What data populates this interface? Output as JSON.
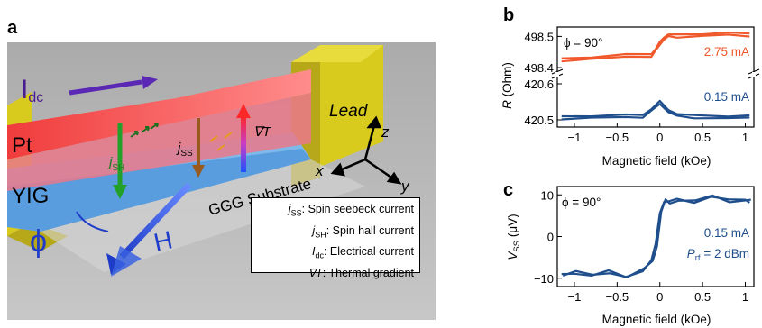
{
  "figure": {
    "panel_a": {
      "letter": "a",
      "labels": {
        "idc_main": "I",
        "idc_sub": "dc",
        "pt": "Pt",
        "yig": "YIG",
        "lead": "Lead",
        "substrate": "GGG Substrate",
        "jsh_main": "j",
        "jsh_sub": "SH",
        "jss_main": "j",
        "jss_sub": "SS",
        "gradT": "∇T",
        "phi": "ϕ",
        "H": "H",
        "axis_x": "x",
        "axis_y": "y",
        "axis_z": "z"
      },
      "legend": [
        {
          "sym": "j",
          "sub": "SS",
          "text": ": Spin seebeck current"
        },
        {
          "sym": "j",
          "sub": "SH",
          "text": ": Spin hall current"
        },
        {
          "sym": "I",
          "sub": "dc",
          "text": ": Electrical current"
        },
        {
          "sym": "∇T",
          "sub": "",
          "text": ": Thermal gradient"
        }
      ]
    },
    "panel_b": {
      "letter": "b",
      "annotation_phi": "ϕ = 90°",
      "ylabel_main": "R",
      "ylabel_unit": "(Ohm)",
      "xlabel": "Magnetic field (kOe)",
      "label_high": "2.75 mA",
      "label_low": "0.15 mA",
      "yticks_top": [
        "498.5",
        "498.4"
      ],
      "yticks_bottom": [
        "420.6",
        "420.5"
      ],
      "xticks": [
        "−1",
        "−0.5",
        "0",
        "0.5",
        "1"
      ]
    },
    "panel_c": {
      "letter": "c",
      "annotation_phi": "ϕ = 90°",
      "ylabel_main": "V",
      "ylabel_sub": "SS",
      "ylabel_unit": "(μV)",
      "xlabel": "Magnetic field (kOe)",
      "label_current": "0.15 mA",
      "label_prf_main": "P",
      "label_prf_sub": "rf",
      "label_prf_value": "= 2 dBm",
      "yticks": [
        "10",
        "0",
        "−10"
      ],
      "xticks": [
        "−1",
        "−0.5",
        "0",
        "0.5",
        "1"
      ]
    }
  },
  "chart_data": [
    {
      "type": "line",
      "panel": "b (upper)",
      "xlabel": "Magnetic field (kOe)",
      "ylabel": "R (Ohm)",
      "xlim": [
        -1.2,
        1.1
      ],
      "ylim": [
        498.38,
        498.53
      ],
      "series": [
        {
          "name": "2.75 mA",
          "color": "#f0592b",
          "x": [
            -1.15,
            -0.8,
            -0.4,
            -0.1,
            -0.05,
            0.0,
            0.05,
            0.1,
            0.2,
            0.5,
            0.8,
            1.05
          ],
          "values": [
            498.43,
            498.435,
            498.44,
            498.445,
            498.46,
            498.48,
            498.5,
            498.505,
            498.505,
            498.51,
            498.51,
            498.51
          ]
        }
      ]
    },
    {
      "type": "line",
      "panel": "b (lower)",
      "xlabel": "Magnetic field (kOe)",
      "ylabel": "R (Ohm)",
      "xlim": [
        -1.2,
        1.1
      ],
      "ylim": [
        420.48,
        420.62
      ],
      "series": [
        {
          "name": "0.15 mA",
          "color": "#1f4e8c",
          "x": [
            -1.15,
            -0.8,
            -0.4,
            -0.2,
            -0.1,
            0.0,
            0.1,
            0.2,
            0.4,
            0.8,
            1.05
          ],
          "values": [
            420.51,
            420.512,
            420.512,
            420.515,
            420.53,
            420.55,
            420.53,
            420.515,
            420.512,
            420.512,
            420.51
          ]
        }
      ]
    },
    {
      "type": "line",
      "panel": "c",
      "xlabel": "Magnetic field (kOe)",
      "ylabel": "VSS (μV)",
      "xlim": [
        -1.2,
        1.1
      ],
      "ylim": [
        -12,
        12
      ],
      "series": [
        {
          "name": "0.15 mA",
          "color": "#1f4e8c",
          "x": [
            -1.15,
            -1.0,
            -0.8,
            -0.6,
            -0.4,
            -0.2,
            -0.1,
            -0.05,
            0.0,
            0.05,
            0.1,
            0.2,
            0.4,
            0.6,
            0.8,
            1.0,
            1.05
          ],
          "values": [
            -9,
            -8.5,
            -9.5,
            -8.5,
            -9.5,
            -8,
            -6,
            -2,
            6,
            8.5,
            8,
            9,
            8.5,
            9.5,
            8.5,
            9,
            8.5
          ]
        }
      ]
    }
  ]
}
